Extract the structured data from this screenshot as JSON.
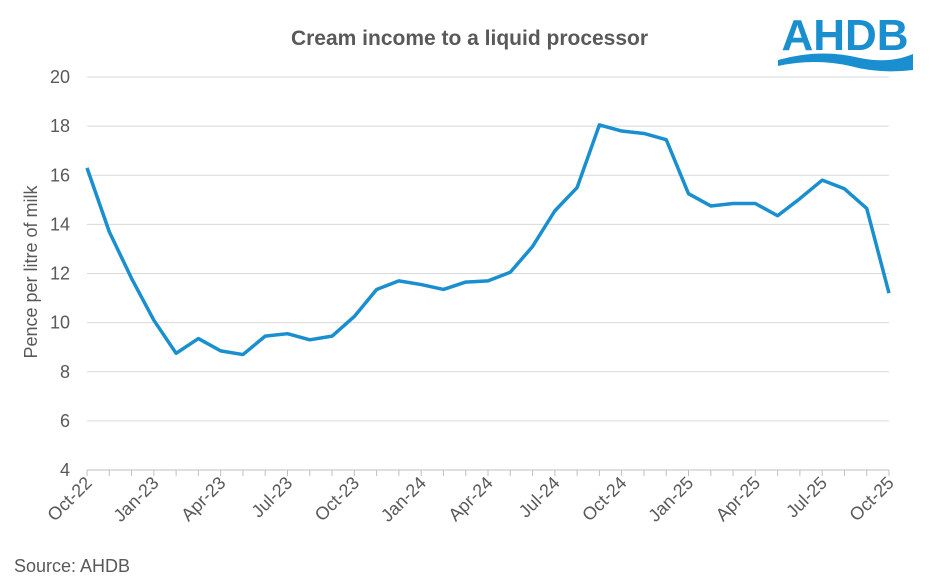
{
  "chart_data": {
    "type": "line",
    "title": "Cream income to a liquid processor",
    "ylabel": "Pence per litre of milk",
    "xlabel": "",
    "ylim": [
      4,
      20
    ],
    "yticks": [
      4,
      6,
      8,
      10,
      12,
      14,
      16,
      18,
      20
    ],
    "grid": true,
    "xtick_labels": [
      "Oct-22",
      "Jan-23",
      "Apr-23",
      "Jul-23",
      "Oct-23",
      "Jan-24",
      "Apr-24",
      "Jul-24",
      "Oct-24",
      "Jan-25",
      "Apr-25",
      "Jul-25",
      "Oct-25"
    ],
    "x": [
      "Oct-22",
      "Nov-22",
      "Dec-22",
      "Jan-23",
      "Feb-23",
      "Mar-23",
      "Apr-23",
      "May-23",
      "Jun-23",
      "Jul-23",
      "Aug-23",
      "Sep-23",
      "Oct-23",
      "Nov-23",
      "Dec-23",
      "Jan-24",
      "Feb-24",
      "Mar-24",
      "Apr-24",
      "May-24",
      "Jun-24",
      "Jul-24",
      "Aug-24",
      "Sep-24",
      "Oct-24",
      "Nov-24",
      "Dec-24",
      "Jan-25",
      "Feb-25",
      "Mar-25",
      "Apr-25",
      "May-25",
      "Jun-25",
      "Jul-25",
      "Aug-25",
      "Sep-25",
      "Oct-25"
    ],
    "series": [
      {
        "values": [
          16.3,
          13.7,
          11.8,
          10.1,
          8.75,
          9.35,
          8.85,
          8.7,
          9.45,
          9.55,
          9.3,
          9.45,
          10.25,
          11.35,
          11.7,
          11.55,
          11.35,
          11.65,
          11.7,
          12.05,
          13.1,
          14.55,
          15.5,
          18.05,
          17.8,
          17.7,
          17.45,
          15.25,
          14.75,
          14.85,
          14.85,
          14.35,
          15.05,
          15.8,
          15.45,
          14.65,
          11.2
        ],
        "color": "#1a8fd0"
      }
    ]
  },
  "source": "Source: AHDB",
  "logo": {
    "text": "AHDB",
    "color": "#1a8fd0"
  }
}
